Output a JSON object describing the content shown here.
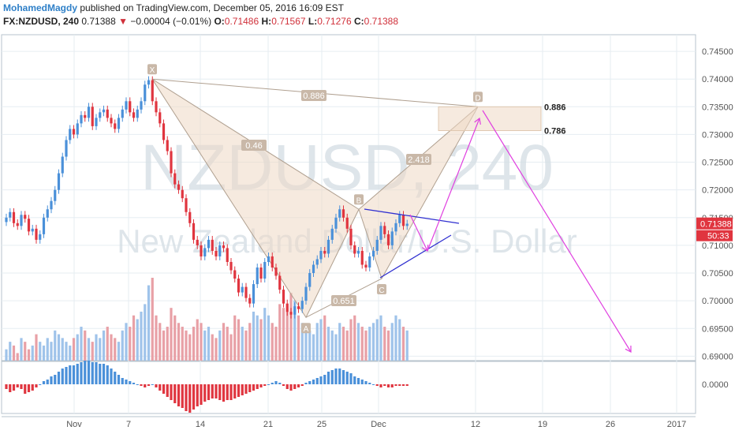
{
  "header": {
    "author": "MohamedMagdy",
    "published": "published on TradingView.com, December 05, 2016 16:09 EST",
    "symbol": "FX:NZDUSD, 240",
    "last": "0.71388",
    "change": "−0.00004 (−0.01%)",
    "open_label": "O:",
    "open": "0.71486",
    "high_label": "H:",
    "high": "0.71567",
    "low_label": "L:",
    "low": "0.71276",
    "close_label": "C:",
    "close": "0.71388"
  },
  "watermark": {
    "ticker": "NZDUSD, 240",
    "name": "New Zealand Dollar/U.S. Dollar"
  },
  "price_badge": {
    "price": "0.71388",
    "countdown": "50:33"
  },
  "macd_zero_label": "0.0000",
  "colors": {
    "up": "#4a90d9",
    "down": "#e0353f",
    "pattern_fill": "#efd9c4",
    "pattern_stroke": "#b0a090",
    "magenta": "#e040e0",
    "triangle": "#3030d0",
    "grid": "#e6edf2"
  },
  "chart_data": {
    "type": "candlestick",
    "ylim": [
      0.6892,
      0.748
    ],
    "y_ticks": [
      "0.74500",
      "0.74000",
      "0.73500",
      "0.73000",
      "0.72500",
      "0.72000",
      "0.71500",
      "0.71000",
      "0.70500",
      "0.70000",
      "0.69500",
      "0.69000"
    ],
    "x_ticks": [
      "Nov",
      "7",
      "14",
      "21",
      "25",
      "Dec",
      "12",
      "19",
      "26",
      "2017"
    ],
    "close_series": [
      0.715,
      0.716,
      0.714,
      0.7135,
      0.7155,
      0.7148,
      0.7125,
      0.713,
      0.711,
      0.712,
      0.715,
      0.7165,
      0.718,
      0.72,
      0.723,
      0.726,
      0.729,
      0.731,
      0.73,
      0.732,
      0.7335,
      0.733,
      0.735,
      0.7315,
      0.733,
      0.734,
      0.7345,
      0.733,
      0.732,
      0.731,
      0.733,
      0.7345,
      0.736,
      0.734,
      0.733,
      0.7345,
      0.736,
      0.739,
      0.7398,
      0.736,
      0.734,
      0.732,
      0.729,
      0.727,
      0.723,
      0.721,
      0.72,
      0.7185,
      0.716,
      0.714,
      0.711,
      0.71,
      0.708,
      0.7095,
      0.711,
      0.709,
      0.708,
      0.71,
      0.7095,
      0.707,
      0.7055,
      0.704,
      0.7015,
      0.7025,
      0.7005,
      0.6995,
      0.703,
      0.706,
      0.704,
      0.707,
      0.708,
      0.706,
      0.7045,
      0.702,
      0.6995,
      0.698,
      0.6975,
      0.699,
      0.6985,
      0.7,
      0.7025,
      0.705,
      0.7065,
      0.7075,
      0.709,
      0.7085,
      0.711,
      0.713,
      0.715,
      0.7165,
      0.715,
      0.713,
      0.71,
      0.7085,
      0.709,
      0.7065,
      0.706,
      0.708,
      0.709,
      0.711,
      0.7135,
      0.712,
      0.71,
      0.7125,
      0.714,
      0.7155,
      0.7135,
      0.7139
    ],
    "pattern": {
      "points": [
        {
          "label": "X",
          "value": 0.74
        },
        {
          "label": "A",
          "value": 0.697
        },
        {
          "label": "B",
          "value": 0.7165
        },
        {
          "label": "C",
          "value": 0.704
        },
        {
          "label": "D",
          "value": 0.735
        }
      ],
      "ratios": [
        "0.886",
        "0.46",
        "0.651",
        "2.418"
      ],
      "zone_labels": [
        "0.886",
        "0.786"
      ],
      "zone_levels": [
        0.735,
        0.7307
      ]
    },
    "projection": [
      0.71,
      0.735,
      0.691
    ],
    "volume": [
      3,
      5,
      4,
      2,
      6,
      5,
      3,
      4,
      7,
      5,
      4,
      6,
      5,
      8,
      7,
      6,
      5,
      4,
      6,
      7,
      9,
      8,
      6,
      5,
      7,
      6,
      8,
      9,
      7,
      6,
      5,
      8,
      10,
      9,
      12,
      11,
      13,
      15,
      20,
      22,
      12,
      10,
      8,
      9,
      14,
      12,
      10,
      9,
      8,
      7,
      9,
      11,
      10,
      8,
      9,
      7,
      6,
      8,
      10,
      9,
      7,
      12,
      11,
      9,
      8,
      10,
      13,
      12,
      11,
      14,
      12,
      10,
      9,
      15,
      14,
      13,
      18,
      16,
      12,
      10,
      9,
      8,
      7,
      10,
      11,
      12,
      9,
      8,
      7,
      10,
      9,
      8,
      11,
      12,
      10,
      9,
      8,
      9,
      10,
      11,
      12,
      9,
      8,
      10,
      12,
      11,
      9,
      8
    ],
    "macd_hist": [
      -0.3,
      -0.5,
      -0.4,
      -0.2,
      -0.3,
      -0.6,
      -0.5,
      -0.4,
      -0.2,
      0.0,
      0.2,
      0.3,
      0.5,
      0.6,
      0.8,
      1.0,
      1.1,
      1.2,
      1.2,
      1.3,
      1.4,
      1.5,
      1.5,
      1.4,
      1.4,
      1.3,
      1.3,
      1.2,
      1.0,
      0.8,
      0.6,
      0.4,
      0.3,
      0.2,
      0.1,
      0.0,
      -0.1,
      -0.2,
      -0.1,
      0.0,
      -0.2,
      -0.4,
      -0.6,
      -0.8,
      -1.0,
      -1.2,
      -1.4,
      -1.5,
      -1.7,
      -1.8,
      -1.6,
      -1.4,
      -1.3,
      -1.1,
      -1.0,
      -0.9,
      -0.9,
      -1.0,
      -1.1,
      -1.0,
      -1.0,
      -0.9,
      -0.8,
      -0.7,
      -0.6,
      -0.5,
      -0.4,
      -0.3,
      -0.2,
      -0.1,
      0.0,
      0.1,
      0.2,
      0.1,
      -0.1,
      -0.3,
      -0.4,
      -0.3,
      -0.2,
      -0.1,
      0.1,
      0.2,
      0.3,
      0.4,
      0.5,
      0.6,
      0.8,
      0.9,
      1.0,
      1.0,
      0.9,
      0.8,
      0.7,
      0.5,
      0.4,
      0.3,
      0.2,
      0.1,
      0.0,
      -0.1,
      -0.2,
      -0.1,
      -0.2,
      -0.2,
      -0.1,
      -0.1,
      -0.1,
      -0.1
    ]
  }
}
